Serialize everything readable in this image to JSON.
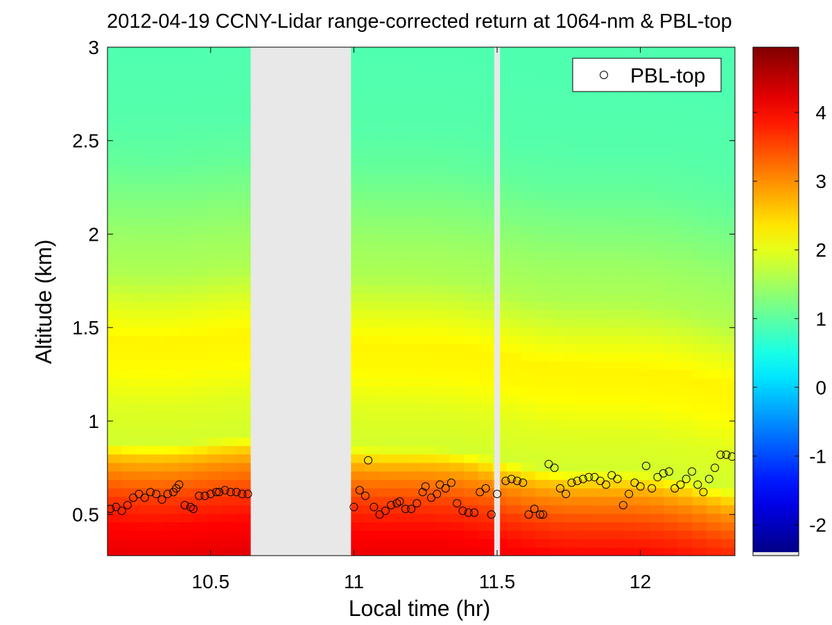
{
  "chart_data": {
    "type": "heatmap",
    "title": "2012-04-19 CCNY-Lidar range-corrected return at 1064-nm & PBL-top",
    "xlabel": "Local time (hr)",
    "ylabel": "Altitude (km)",
    "xlim": [
      10.14,
      12.33
    ],
    "ylim": [
      0.28,
      3.0
    ],
    "x_ticks": [
      10.5,
      11,
      11.5,
      12
    ],
    "x_tick_labels": [
      "10.5",
      "11",
      "11.5",
      "12"
    ],
    "y_ticks": [
      0.5,
      1,
      1.5,
      2,
      2.5,
      3
    ],
    "y_tick_labels": [
      "0.5",
      "1",
      "1.5",
      "2",
      "2.5",
      "3"
    ],
    "colorbar": {
      "clim": [
        -2.45,
        4.95
      ],
      "ticks": [
        -2,
        -1,
        0,
        1,
        2,
        3,
        4
      ],
      "tick_labels": [
        "-2",
        "-1",
        "0",
        "1",
        "2",
        "3",
        "4"
      ],
      "colormap": "jet"
    },
    "no_data_gaps": [
      [
        10.64,
        10.99
      ],
      [
        11.49,
        11.51
      ]
    ],
    "legend": {
      "label": "PBL-top",
      "position": "top-right",
      "marker": "open-circle"
    },
    "field_profile": {
      "altitude_km": [
        0.28,
        0.45,
        0.6,
        0.75,
        0.82,
        0.9,
        1.1,
        1.3,
        1.45,
        1.6,
        1.8,
        2.0,
        2.2,
        2.4,
        2.6,
        3.0
      ],
      "value": [
        4.2,
        4.0,
        3.6,
        3.0,
        2.6,
        1.85,
        1.95,
        2.2,
        2.25,
        2.0,
        1.6,
        1.45,
        1.25,
        1.05,
        0.95,
        0.9
      ]
    },
    "series": [
      {
        "name": "PBL-top",
        "x": [
          10.15,
          10.17,
          10.19,
          10.21,
          10.23,
          10.25,
          10.27,
          10.29,
          10.31,
          10.33,
          10.35,
          10.37,
          10.38,
          10.39,
          10.41,
          10.43,
          10.44,
          10.46,
          10.48,
          10.5,
          10.52,
          10.53,
          10.55,
          10.57,
          10.59,
          10.61,
          10.63,
          11.0,
          11.02,
          11.04,
          11.05,
          11.07,
          11.09,
          11.11,
          11.13,
          11.15,
          11.16,
          11.18,
          11.2,
          11.22,
          11.24,
          11.25,
          11.27,
          11.29,
          11.3,
          11.32,
          11.34,
          11.36,
          11.38,
          11.4,
          11.42,
          11.44,
          11.46,
          11.48,
          11.5,
          11.53,
          11.55,
          11.57,
          11.59,
          11.61,
          11.63,
          11.65,
          11.66,
          11.68,
          11.7,
          11.72,
          11.74,
          11.76,
          11.78,
          11.8,
          11.82,
          11.84,
          11.86,
          11.88,
          11.9,
          11.92,
          11.94,
          11.96,
          11.98,
          12.0,
          12.02,
          12.04,
          12.06,
          12.08,
          12.1,
          12.12,
          12.14,
          12.16,
          12.18,
          12.2,
          12.22,
          12.24,
          12.26,
          12.28,
          12.3,
          12.32
        ],
        "y": [
          0.53,
          0.54,
          0.52,
          0.55,
          0.59,
          0.61,
          0.59,
          0.62,
          0.61,
          0.58,
          0.61,
          0.62,
          0.64,
          0.66,
          0.55,
          0.54,
          0.53,
          0.6,
          0.6,
          0.61,
          0.62,
          0.62,
          0.63,
          0.62,
          0.62,
          0.61,
          0.61,
          0.54,
          0.63,
          0.6,
          0.79,
          0.54,
          0.5,
          0.52,
          0.55,
          0.56,
          0.57,
          0.53,
          0.53,
          0.56,
          0.62,
          0.65,
          0.59,
          0.61,
          0.66,
          0.64,
          0.67,
          0.56,
          0.52,
          0.51,
          0.51,
          0.62,
          0.64,
          0.5,
          0.61,
          0.68,
          0.69,
          0.68,
          0.67,
          0.5,
          0.53,
          0.5,
          0.5,
          0.77,
          0.75,
          0.64,
          0.61,
          0.67,
          0.68,
          0.69,
          0.7,
          0.7,
          0.68,
          0.66,
          0.71,
          0.69,
          0.55,
          0.61,
          0.67,
          0.65,
          0.76,
          0.64,
          0.7,
          0.72,
          0.73,
          0.64,
          0.66,
          0.69,
          0.73,
          0.66,
          0.62,
          0.69,
          0.75,
          0.82,
          0.82,
          0.81
        ]
      }
    ]
  }
}
